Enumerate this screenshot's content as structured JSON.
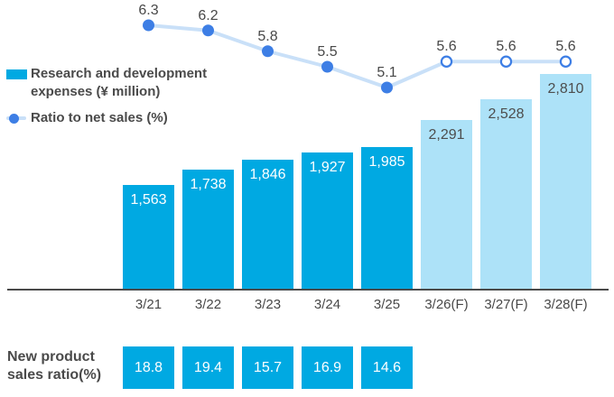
{
  "colors": {
    "bar_actual": "#00a9e2",
    "bar_forecast": "#ade2f8",
    "bar_label_actual": "#ffffff",
    "bar_label_forecast": "#4d4d4d",
    "dot_fill": "#3d7ee5",
    "dot_open_fill": "#ffffff",
    "line": "#c9e0f8",
    "text_dark": "#4a4a4a",
    "axis_line": "#4a4a4a"
  },
  "legend": {
    "bar_label": "Research and development expenses (¥ million)",
    "line_label": "Ratio to net sales (%)"
  },
  "chart_data": {
    "type": "bar",
    "categories": [
      "3/21",
      "3/22",
      "3/23",
      "3/24",
      "3/25",
      "3/26(F)",
      "3/27(F)",
      "3/28(F)"
    ],
    "series": [
      {
        "name": "Research and development expenses (¥ million)",
        "type": "bar",
        "values": [
          1563,
          1738,
          1846,
          1927,
          1985,
          2291,
          2528,
          2810
        ],
        "labels": [
          "1,563",
          "1,738",
          "1,846",
          "1,927",
          "1,985",
          "2,291",
          "2,528",
          "2,810"
        ],
        "forecast_from_index": 5
      },
      {
        "name": "Ratio to net sales (%)",
        "type": "line",
        "values": [
          6.3,
          6.2,
          5.8,
          5.5,
          5.1,
          5.6,
          5.6,
          5.6
        ],
        "labels": [
          "6.3",
          "6.2",
          "5.8",
          "5.5",
          "5.1",
          "5.6",
          "5.6",
          "5.6"
        ],
        "forecast_from_index": 5
      }
    ],
    "title": "",
    "xlabel": "",
    "ylabel": "",
    "legend_position": "left",
    "grid": false
  },
  "footer": {
    "label": "New product sales ratio(%)",
    "values": [
      18.8,
      19.4,
      15.7,
      16.9,
      14.6
    ],
    "labels": [
      "18.8",
      "19.4",
      "15.7",
      "16.9",
      "14.6"
    ]
  }
}
